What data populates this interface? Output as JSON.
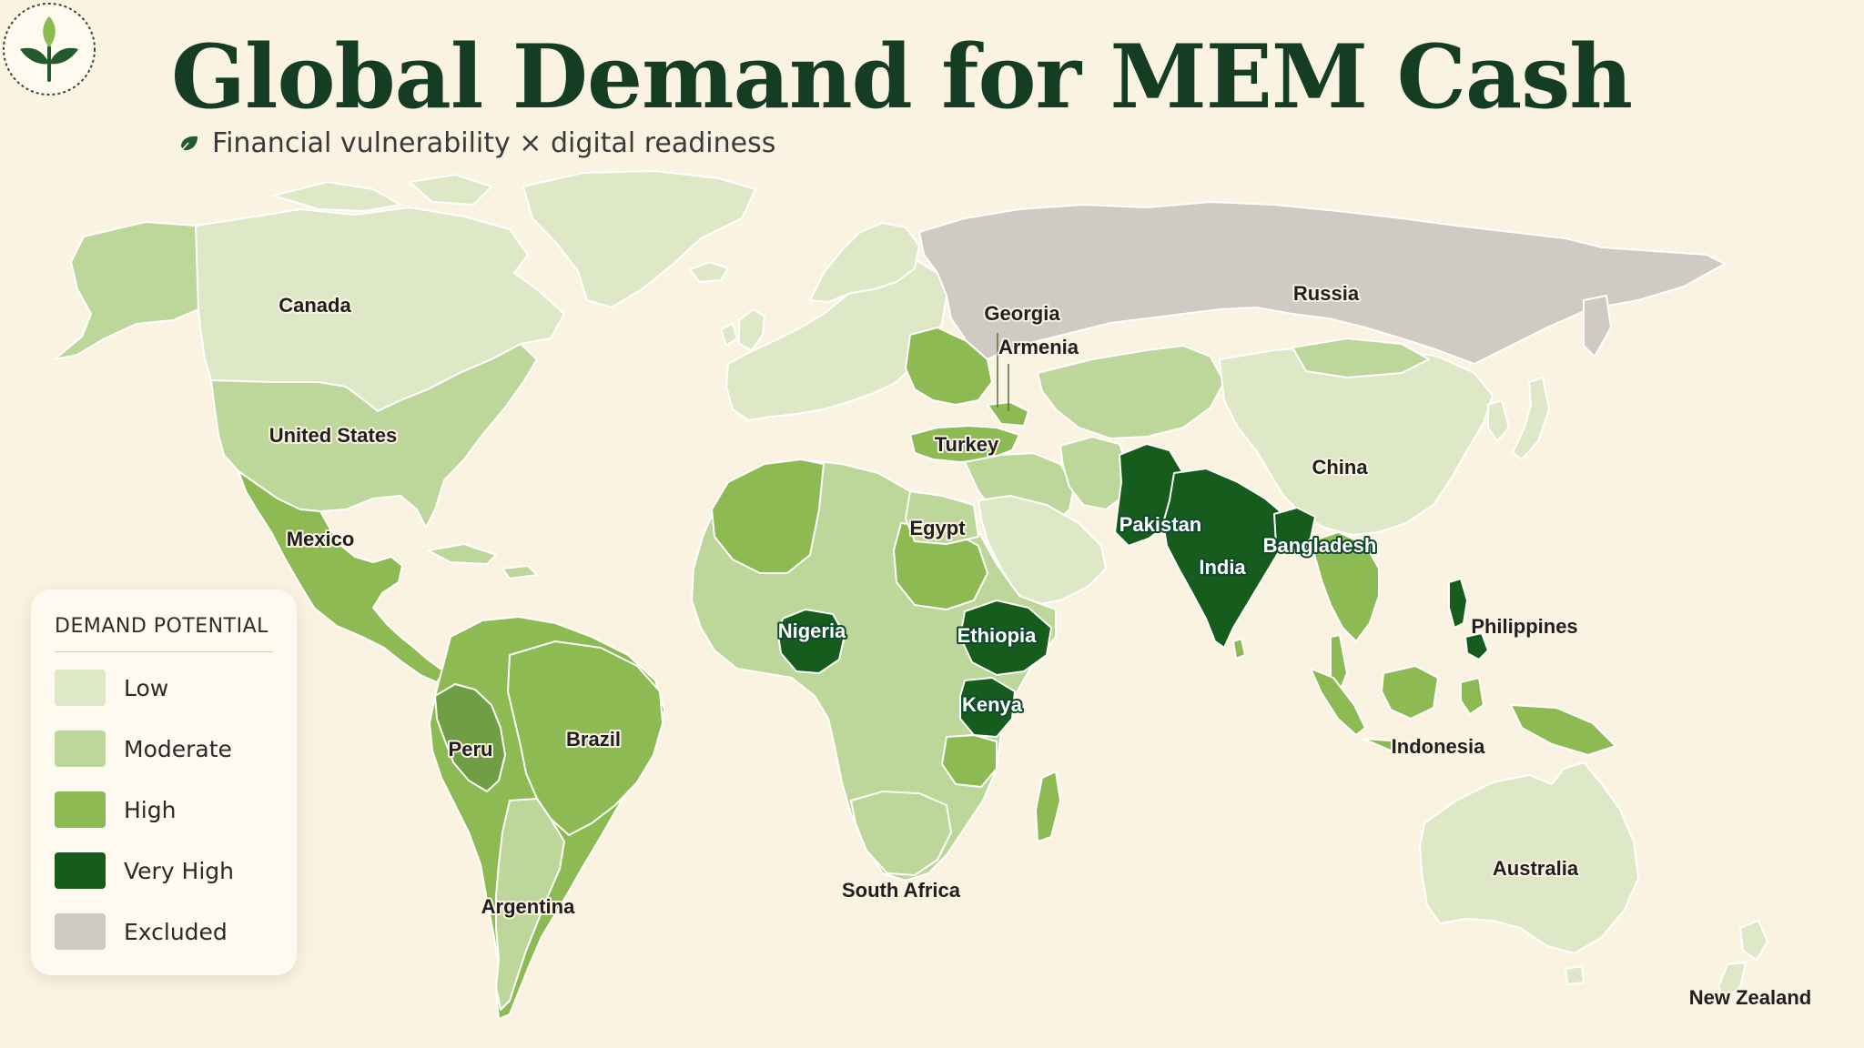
{
  "header": {
    "title": "Global Demand for MEM Cash",
    "subtitle": "Financial vulnerability × digital readiness",
    "logo_icon": "sprout-icon",
    "subtitle_icon": "leaf-icon"
  },
  "legend": {
    "title": "DEMAND POTENTIAL",
    "items": [
      {
        "key": "low",
        "label": "Low",
        "color": "#dfe8c6"
      },
      {
        "key": "moderate",
        "label": "Moderate",
        "color": "#bdd69a"
      },
      {
        "key": "high",
        "label": "High",
        "color": "#8dba52"
      },
      {
        "key": "very_high",
        "label": "Very High",
        "color": "#165c1d"
      },
      {
        "key": "excluded",
        "label": "Excluded",
        "color": "#cfcac2"
      }
    ]
  },
  "regions": [
    {
      "name": "Canada",
      "level": "low"
    },
    {
      "name": "United States",
      "level": "moderate"
    },
    {
      "name": "Mexico",
      "level": "high"
    },
    {
      "name": "Brazil",
      "level": "high"
    },
    {
      "name": "Peru",
      "level": "high"
    },
    {
      "name": "Argentina",
      "level": "moderate"
    },
    {
      "name": "Georgia",
      "level": "high"
    },
    {
      "name": "Armenia",
      "level": "high"
    },
    {
      "name": "Turkey",
      "level": "high"
    },
    {
      "name": "Egypt",
      "level": "moderate"
    },
    {
      "name": "Nigeria",
      "level": "very_high"
    },
    {
      "name": "Ethiopia",
      "level": "very_high"
    },
    {
      "name": "Kenya",
      "level": "very_high"
    },
    {
      "name": "South Africa",
      "level": "moderate"
    },
    {
      "name": "Russia",
      "level": "excluded"
    },
    {
      "name": "China",
      "level": "moderate"
    },
    {
      "name": "Pakistan",
      "level": "very_high"
    },
    {
      "name": "India",
      "level": "very_high"
    },
    {
      "name": "Bangladesh",
      "level": "very_high"
    },
    {
      "name": "Philippines",
      "level": "very_high"
    },
    {
      "name": "Indonesia",
      "level": "high"
    },
    {
      "name": "Australia",
      "level": "low"
    },
    {
      "name": "New Zealand",
      "level": "low"
    }
  ]
}
